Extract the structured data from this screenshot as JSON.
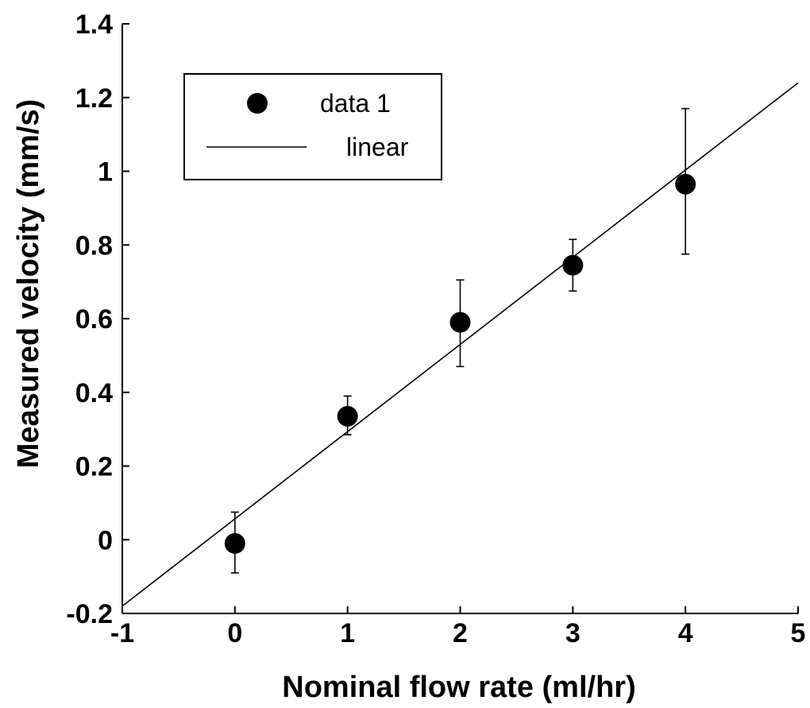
{
  "chart_data": {
    "type": "scatter",
    "title": "",
    "xlabel": "Nominal flow rate (ml/hr)",
    "ylabel": "Measured velocity (mm/s)",
    "xlim": [
      -1,
      5
    ],
    "ylim": [
      -0.2,
      1.4
    ],
    "x_ticks": [
      -1,
      0,
      1,
      2,
      3,
      4,
      5
    ],
    "x_tick_labels": [
      "-1",
      "0",
      "1",
      "2",
      "3",
      "4",
      "5"
    ],
    "y_ticks": [
      -0.2,
      0,
      0.2,
      0.4,
      0.6,
      0.8,
      1.0,
      1.2,
      1.4
    ],
    "y_tick_labels": [
      "-0.2",
      "0",
      "0.2",
      "0.4",
      "0.6",
      "0.8",
      "1",
      "1.2",
      "1.4"
    ],
    "grid": false,
    "legend_position": "top-left",
    "series": [
      {
        "name": "data 1",
        "kind": "scatter-with-errorbars",
        "color": "#000000",
        "x": [
          0,
          1,
          2,
          3,
          4
        ],
        "y": [
          -0.01,
          0.335,
          0.59,
          0.745,
          0.965
        ],
        "error_low": [
          -0.09,
          0.285,
          0.47,
          0.675,
          0.775
        ],
        "error_high": [
          0.075,
          0.39,
          0.705,
          0.815,
          1.17
        ]
      },
      {
        "name": "linear",
        "kind": "line",
        "color": "#000000",
        "x": [
          -1,
          5
        ],
        "y": [
          -0.18,
          1.24
        ]
      }
    ]
  }
}
